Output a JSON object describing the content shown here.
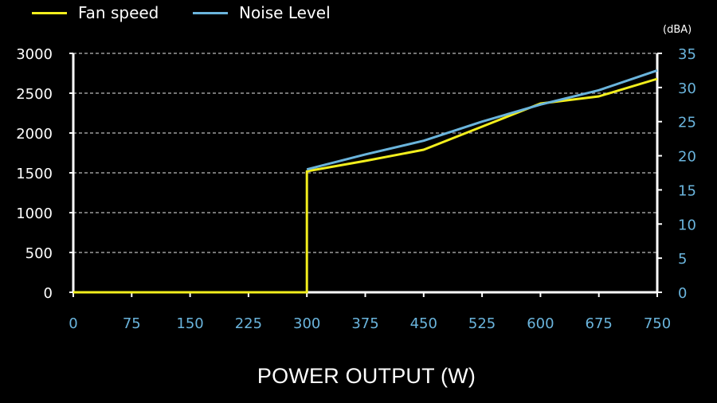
{
  "chart_data": {
    "type": "line",
    "x": [
      0,
      75,
      150,
      225,
      300,
      375,
      450,
      525,
      600,
      675,
      750
    ],
    "xlabel": "POWER OUTPUT (W)",
    "xlim": [
      0,
      750
    ],
    "y_left_lim": [
      0,
      3000
    ],
    "y_left_ticks": [
      0,
      500,
      1000,
      1500,
      2000,
      2500,
      3000
    ],
    "y_right_lim": [
      0,
      35
    ],
    "y_right_ticks": [
      0,
      5,
      10,
      15,
      20,
      25,
      30,
      35
    ],
    "y_right_unit": "(dBA)",
    "grid": "horizontal dashed",
    "legend_position": "top-left",
    "series": [
      {
        "name": "Fan speed",
        "axis": "left",
        "color": "#f2ee1d",
        "points": [
          [
            0,
            0
          ],
          [
            300,
            0
          ],
          [
            300,
            1520
          ],
          [
            375,
            1650
          ],
          [
            450,
            1790
          ],
          [
            525,
            2080
          ],
          [
            600,
            2370
          ],
          [
            675,
            2460
          ],
          [
            750,
            2680
          ]
        ]
      },
      {
        "name": "Noise Level",
        "axis": "right",
        "color": "#6ab4dc",
        "points": [
          [
            300,
            18.0
          ],
          [
            375,
            20.2
          ],
          [
            450,
            22.2
          ],
          [
            525,
            25.0
          ],
          [
            600,
            27.5
          ],
          [
            675,
            29.6
          ],
          [
            750,
            32.5
          ]
        ]
      }
    ]
  },
  "colors": {
    "background": "#000000",
    "axis": "#ffffff",
    "left_tick_text": "#ffffff",
    "right_tick_text": "#6ab4dc",
    "x_tick_text": "#6ab4dc",
    "grid": "#bbbbbb"
  }
}
